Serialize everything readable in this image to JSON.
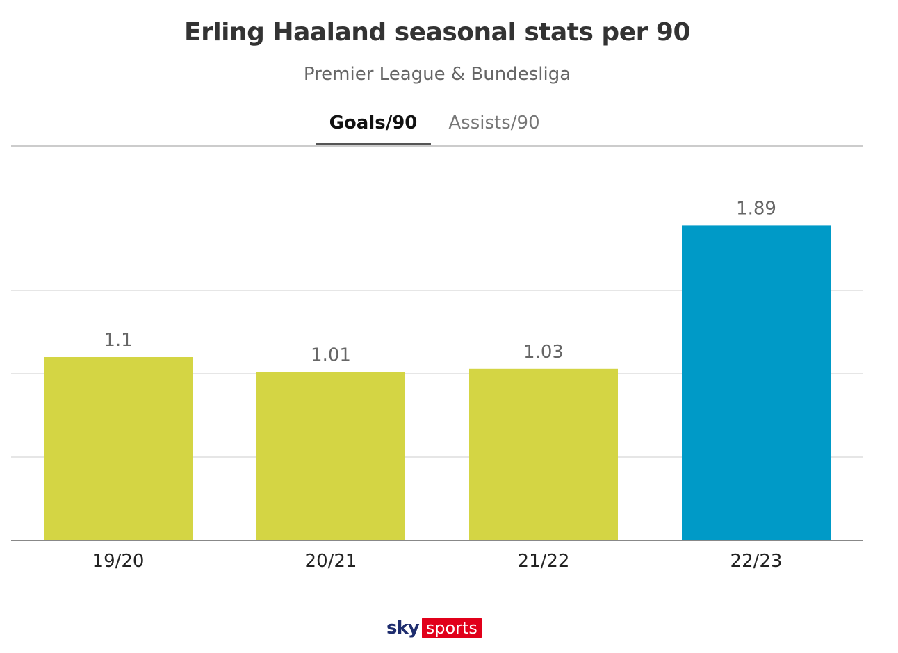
{
  "header": {
    "title": "Erling Haaland seasonal stats per 90",
    "subtitle": "Premier League & Bundesliga"
  },
  "tabs": [
    {
      "label": "Goals/90",
      "active": true
    },
    {
      "label": "Assists/90",
      "active": false
    }
  ],
  "chart_data": {
    "type": "bar",
    "categories": [
      "19/20",
      "20/21",
      "21/22",
      "22/23"
    ],
    "values": [
      1.1,
      1.01,
      1.03,
      1.89
    ],
    "value_labels": [
      "1.1",
      "1.01",
      "1.03",
      "1.89"
    ],
    "bar_colors": [
      "#d4d544",
      "#d4d544",
      "#d4d544",
      "#009ac7"
    ],
    "ylim": [
      0,
      2
    ],
    "gridlines": [
      0.5,
      1,
      1.5
    ],
    "grid": true,
    "xlabel": "",
    "ylabel": ""
  },
  "logo": {
    "sky": "sky",
    "sports": "sports"
  }
}
